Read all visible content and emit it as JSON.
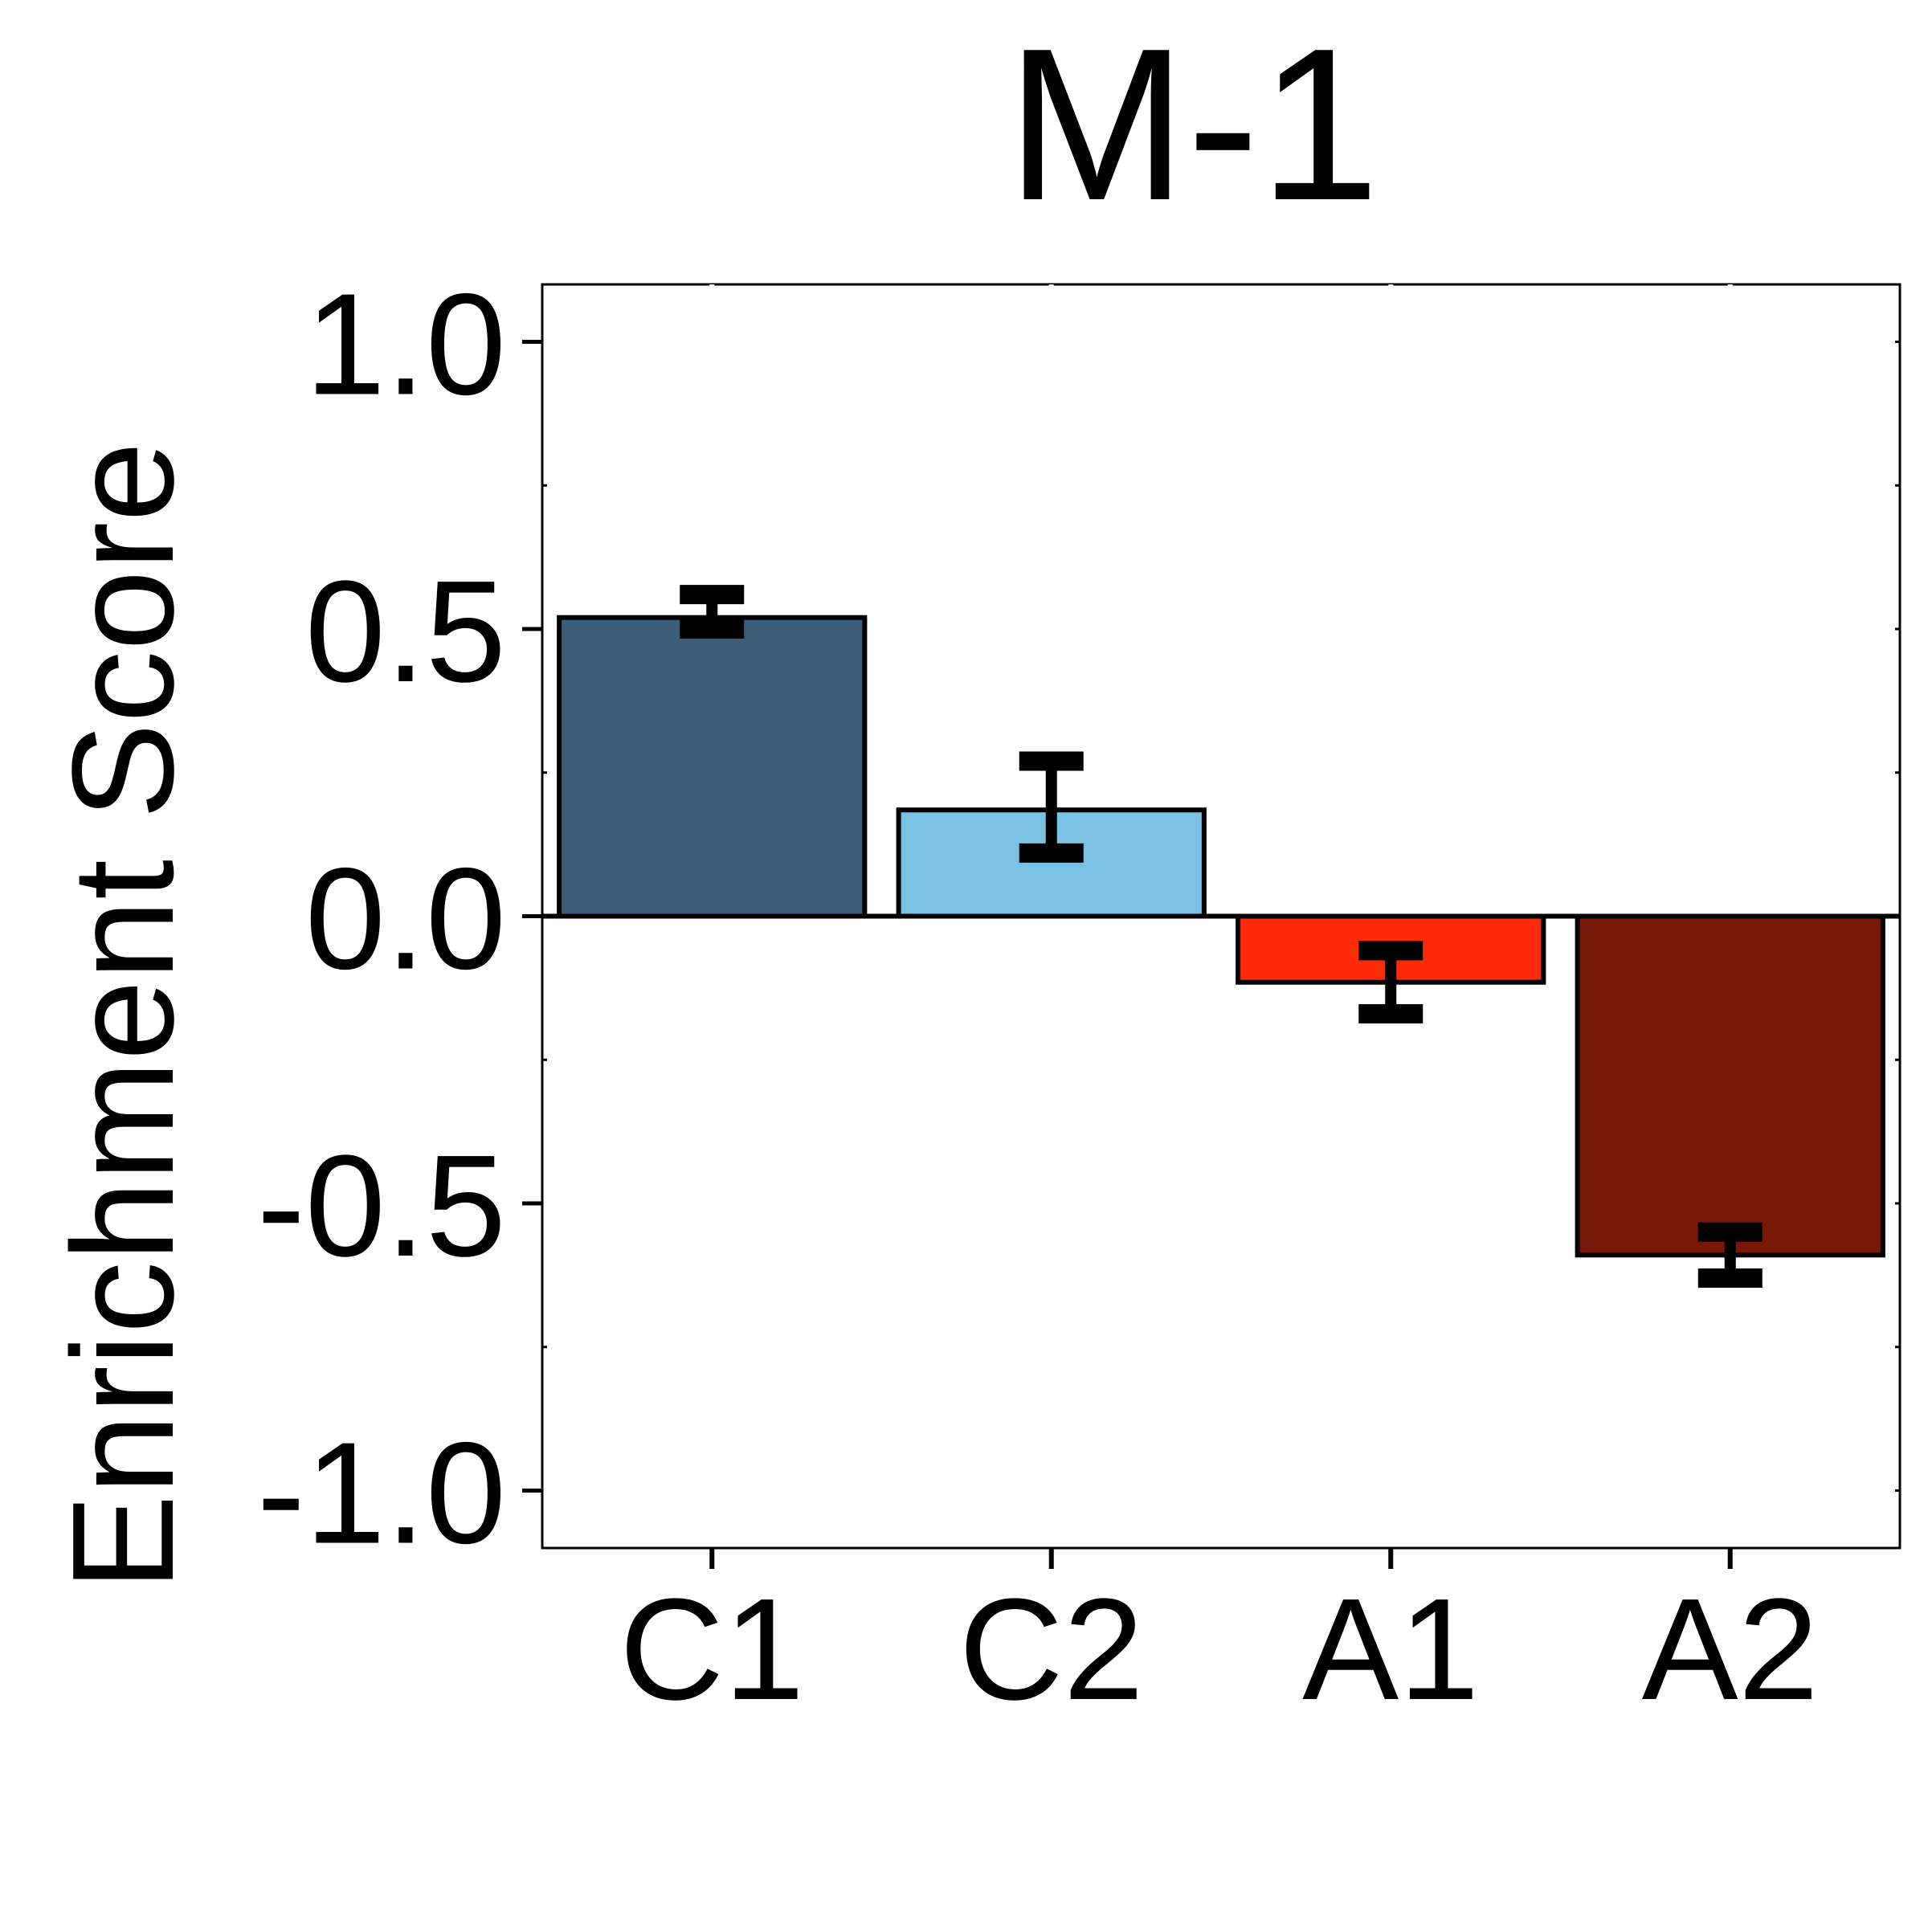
{
  "chart_data": {
    "type": "bar",
    "title": "M-1",
    "xlabel": "",
    "ylabel": "Enrichment Score",
    "categories": [
      "C1",
      "C2",
      "A1",
      "A2"
    ],
    "values": [
      0.52,
      0.185,
      -0.115,
      -0.59
    ],
    "error": [
      [
        0.5,
        0.56
      ],
      [
        0.11,
        0.27
      ],
      [
        -0.17,
        -0.06
      ],
      [
        -0.63,
        -0.55
      ]
    ],
    "colors": [
      "#3c5c77",
      "#79c2e3",
      "#fd2b0a",
      "#781806"
    ],
    "ylim": [
      -1.1,
      1.1
    ],
    "yticks": [
      1.0,
      0.5,
      0.0,
      -0.5,
      -1.0
    ],
    "ytick_labels": [
      "1.0",
      "0.5",
      "0.0",
      "-0.5",
      "-1.0"
    ],
    "legend": "none",
    "grid": false
  }
}
